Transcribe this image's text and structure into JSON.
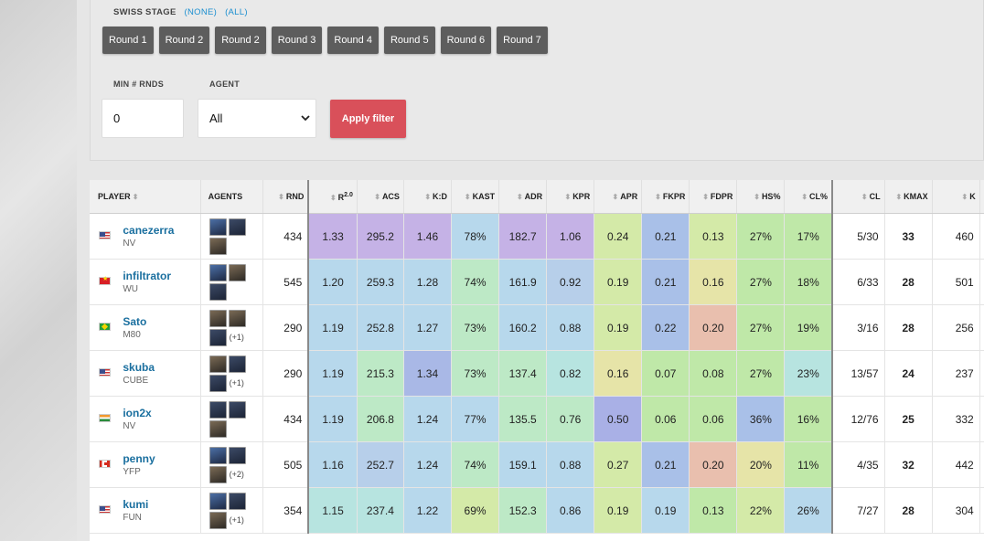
{
  "filters": {
    "swiss_label": "SWISS STAGE",
    "none_link": "(NONE)",
    "all_link": "(ALL)",
    "rounds": [
      "Round 1",
      "Round 2",
      "Round 2",
      "Round 3",
      "Round 4",
      "Round 5",
      "Round 6",
      "Round 7"
    ],
    "min_rnds_label": "MIN # RNDS",
    "min_rnds_value": "0",
    "agent_label": "AGENT",
    "agent_value": "All",
    "apply_label": "Apply filter"
  },
  "table": {
    "headers": {
      "player": "PLAYER",
      "agents": "AGENTS",
      "rnd": "RND",
      "r2": "R",
      "r2_sup": "2.0",
      "acs": "ACS",
      "kd": "K:D",
      "kast": "KAST",
      "adr": "ADR",
      "kpr": "KPR",
      "apr": "APR",
      "fkpr": "FKPR",
      "fdpr": "FDPR",
      "hs": "HS%",
      "clp": "CL%",
      "cl": "CL",
      "kmax": "KMAX",
      "k": "K"
    },
    "rows": [
      {
        "flag": "us",
        "name": "canezerra",
        "team": "NV",
        "more": "",
        "rnd": "434",
        "r2": "1.33",
        "acs": "295.2",
        "kd": "1.46",
        "kast": "78%",
        "adr": "182.7",
        "kpr": "1.06",
        "apr": "0.24",
        "fkpr": "0.21",
        "fdpr": "0.13",
        "hs": "27%",
        "clp": "17%",
        "cl": "5/30",
        "kmax": "33",
        "k": "460"
      },
      {
        "flag": "vn",
        "name": "infiltrator",
        "team": "WU",
        "more": "",
        "rnd": "545",
        "r2": "1.20",
        "acs": "259.3",
        "kd": "1.28",
        "kast": "74%",
        "adr": "161.9",
        "kpr": "0.92",
        "apr": "0.19",
        "fkpr": "0.21",
        "fdpr": "0.16",
        "hs": "27%",
        "clp": "18%",
        "cl": "6/33",
        "kmax": "28",
        "k": "501"
      },
      {
        "flag": "br",
        "name": "Sato",
        "team": "M80",
        "more": "(+1)",
        "rnd": "290",
        "r2": "1.19",
        "acs": "252.8",
        "kd": "1.27",
        "kast": "73%",
        "adr": "160.2",
        "kpr": "0.88",
        "apr": "0.19",
        "fkpr": "0.22",
        "fdpr": "0.20",
        "hs": "27%",
        "clp": "19%",
        "cl": "3/16",
        "kmax": "28",
        "k": "256"
      },
      {
        "flag": "us",
        "name": "skuba",
        "team": "CUBE",
        "more": "(+1)",
        "rnd": "290",
        "r2": "1.19",
        "acs": "215.3",
        "kd": "1.34",
        "kast": "73%",
        "adr": "137.4",
        "kpr": "0.82",
        "apr": "0.16",
        "fkpr": "0.07",
        "fdpr": "0.08",
        "hs": "27%",
        "clp": "23%",
        "cl": "13/57",
        "kmax": "24",
        "k": "237"
      },
      {
        "flag": "in",
        "name": "ion2x",
        "team": "NV",
        "more": "",
        "rnd": "434",
        "r2": "1.19",
        "acs": "206.8",
        "kd": "1.24",
        "kast": "77%",
        "adr": "135.5",
        "kpr": "0.76",
        "apr": "0.50",
        "fkpr": "0.06",
        "fdpr": "0.06",
        "hs": "36%",
        "clp": "16%",
        "cl": "12/76",
        "kmax": "25",
        "k": "332"
      },
      {
        "flag": "ca",
        "name": "penny",
        "team": "YFP",
        "more": "(+2)",
        "rnd": "505",
        "r2": "1.16",
        "acs": "252.7",
        "kd": "1.24",
        "kast": "74%",
        "adr": "159.1",
        "kpr": "0.88",
        "apr": "0.27",
        "fkpr": "0.21",
        "fdpr": "0.20",
        "hs": "20%",
        "clp": "11%",
        "cl": "4/35",
        "kmax": "32",
        "k": "442"
      },
      {
        "flag": "us",
        "name": "kumi",
        "team": "FUN",
        "more": "(+1)",
        "rnd": "354",
        "r2": "1.15",
        "acs": "237.4",
        "kd": "1.22",
        "kast": "69%",
        "adr": "152.3",
        "kpr": "0.86",
        "apr": "0.19",
        "fkpr": "0.19",
        "fdpr": "0.13",
        "hs": "22%",
        "clp": "26%",
        "cl": "7/27",
        "kmax": "28",
        "k": "304"
      }
    ],
    "cell_colors": [
      [
        "#c5b2e6",
        "#c5b2e6",
        "#c5b2e6",
        "#b7d8ec",
        "#c5b2e6",
        "#c5b2e6",
        "#d4eaa8",
        "#a9c0e8",
        "#d4eaa8",
        "#bfe8a8",
        "#bfe8a8"
      ],
      [
        "#b7d8ec",
        "#b7d8ec",
        "#b7d8ec",
        "#bde9c6",
        "#b7d8ec",
        "#b7cfea",
        "#d4eaa8",
        "#a9c0e8",
        "#e6e4a8",
        "#bfe8a8",
        "#bfe8a8"
      ],
      [
        "#b7d8ec",
        "#b7d8ec",
        "#b7d8ec",
        "#bde9c6",
        "#b7d8ec",
        "#b7d8ec",
        "#d4eaa8",
        "#a9c0e8",
        "#e9bfae",
        "#bfe8a8",
        "#bfe8a8"
      ],
      [
        "#b7d8ec",
        "#bde9c6",
        "#a9b8e6",
        "#bde9c6",
        "#bde9c6",
        "#b7e4e0",
        "#e6e4a8",
        "#bfe8a8",
        "#bfe8a8",
        "#bfe8a8",
        "#b7e4e0"
      ],
      [
        "#b7d8ec",
        "#bde9c6",
        "#b7d8ec",
        "#b7d8ec",
        "#bde9c6",
        "#bde9c6",
        "#a9b0e6",
        "#bfe8a8",
        "#bfe8a8",
        "#a9c0e8",
        "#bfe8a8"
      ],
      [
        "#b7d8ec",
        "#b7cfea",
        "#b7d8ec",
        "#bde9c6",
        "#b7d8ec",
        "#b7d8ec",
        "#d4eaa8",
        "#a9c0e8",
        "#e9bfae",
        "#e6e4a8",
        "#bfe8a8"
      ],
      [
        "#b7e4e0",
        "#b7e4e0",
        "#b7d8ec",
        "#d4eaa8",
        "#bde9c6",
        "#b7d8ec",
        "#d4eaa8",
        "#b7d8ec",
        "#bfe8a8",
        "#d4eaa8",
        "#b7d8ec"
      ]
    ]
  }
}
